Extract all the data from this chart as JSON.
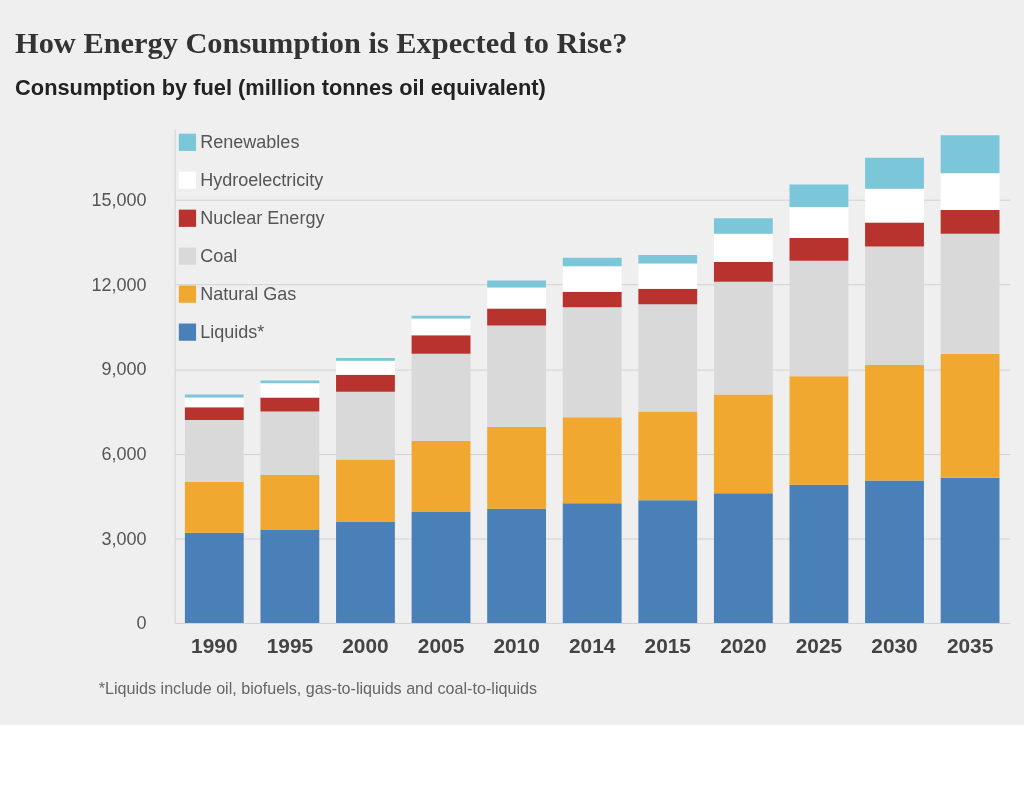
{
  "chart_data": {
    "type": "bar",
    "stacked": true,
    "title": "How Energy Consumption is Expected to Rise?",
    "subtitle": "Consumption by fuel (million tonnes oil equivalent)",
    "categories": [
      "1990",
      "1995",
      "2000",
      "2005",
      "2010",
      "2014",
      "2015",
      "2020",
      "2025",
      "2030",
      "2035"
    ],
    "series": [
      {
        "name": "Liquids*",
        "color": "#4a80b8",
        "values": [
          3200,
          3300,
          3600,
          3950,
          4050,
          4250,
          4350,
          4600,
          4900,
          5050,
          5150
        ]
      },
      {
        "name": "Natural Gas",
        "color": "#f0a830",
        "values": [
          1800,
          1950,
          2200,
          2500,
          2900,
          3050,
          3150,
          3500,
          3850,
          4100,
          4400
        ]
      },
      {
        "name": "Coal",
        "color": "#d9d9d9",
        "values": [
          2200,
          2250,
          2400,
          3100,
          3600,
          3900,
          3800,
          4000,
          4100,
          4200,
          4250
        ]
      },
      {
        "name": "Nuclear Energy",
        "color": "#b8322e",
        "values": [
          450,
          500,
          600,
          650,
          600,
          550,
          550,
          700,
          800,
          850,
          850
        ]
      },
      {
        "name": "Hydroelectricity",
        "color": "#ffffff",
        "values": [
          350,
          500,
          500,
          600,
          750,
          900,
          900,
          1000,
          1100,
          1200,
          1300
        ]
      },
      {
        "name": "Renewables",
        "color": "#7cc6da",
        "values": [
          100,
          100,
          100,
          100,
          250,
          300,
          300,
          550,
          800,
          1100,
          1350
        ]
      }
    ],
    "ylim": [
      0,
      17500
    ],
    "yticks": [
      0,
      {
        "value": 3000,
        "label": "3,000"
      },
      {
        "value": 6000,
        "label": "6,000"
      },
      {
        "value": 9000,
        "label": "9,000"
      },
      {
        "value": 12000,
        "label": "12,000"
      },
      {
        "value": 15000,
        "label": "15,000"
      }
    ],
    "grid": "y",
    "legend": "top left",
    "annotations": [
      "*Liquids include oil, biofuels, gas-to-liquids and coal-to-liquids"
    ]
  }
}
